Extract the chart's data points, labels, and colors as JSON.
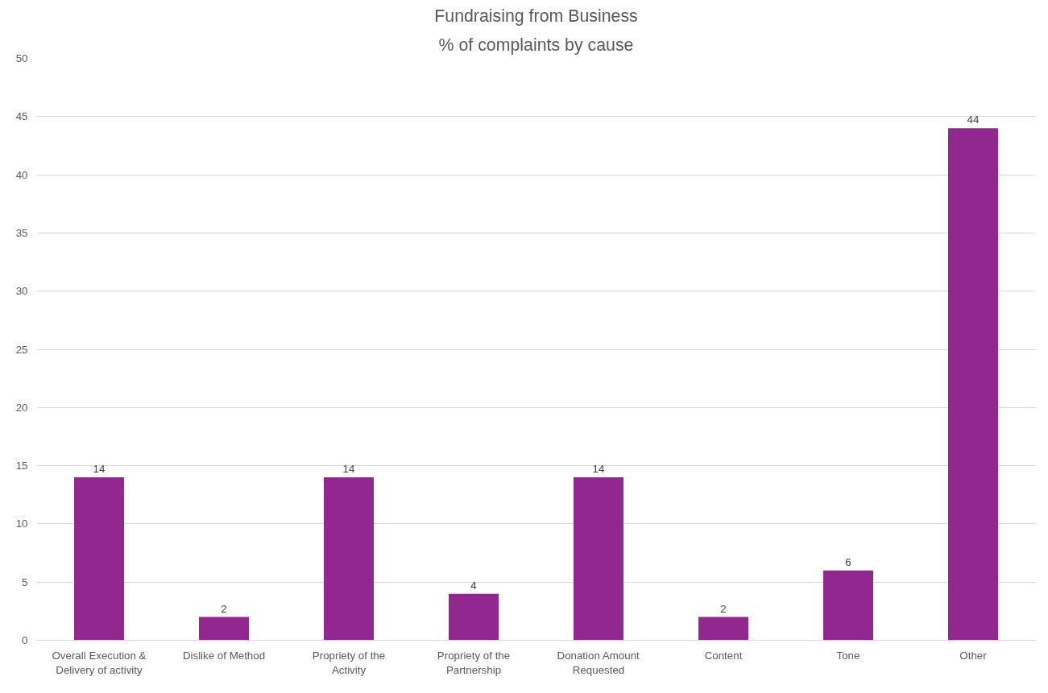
{
  "chart_data": {
    "type": "bar",
    "title": "Fundraising from Business",
    "subtitle": "% of complaints by cause",
    "categories": [
      "Overall Execution & Delivery of activity",
      "Dislike of Method",
      "Propriety of the Activity",
      "Propriety of the Partnership",
      "Donation Amount Requested",
      "Content",
      "Tone",
      "Other"
    ],
    "values": [
      14,
      2,
      14,
      4,
      14,
      2,
      6,
      44
    ],
    "color": "#92278f",
    "ylim": [
      0,
      50
    ],
    "yticks": [
      0,
      5,
      10,
      15,
      20,
      25,
      30,
      35,
      40,
      45,
      50
    ],
    "grid": "y",
    "data_labels": true
  }
}
